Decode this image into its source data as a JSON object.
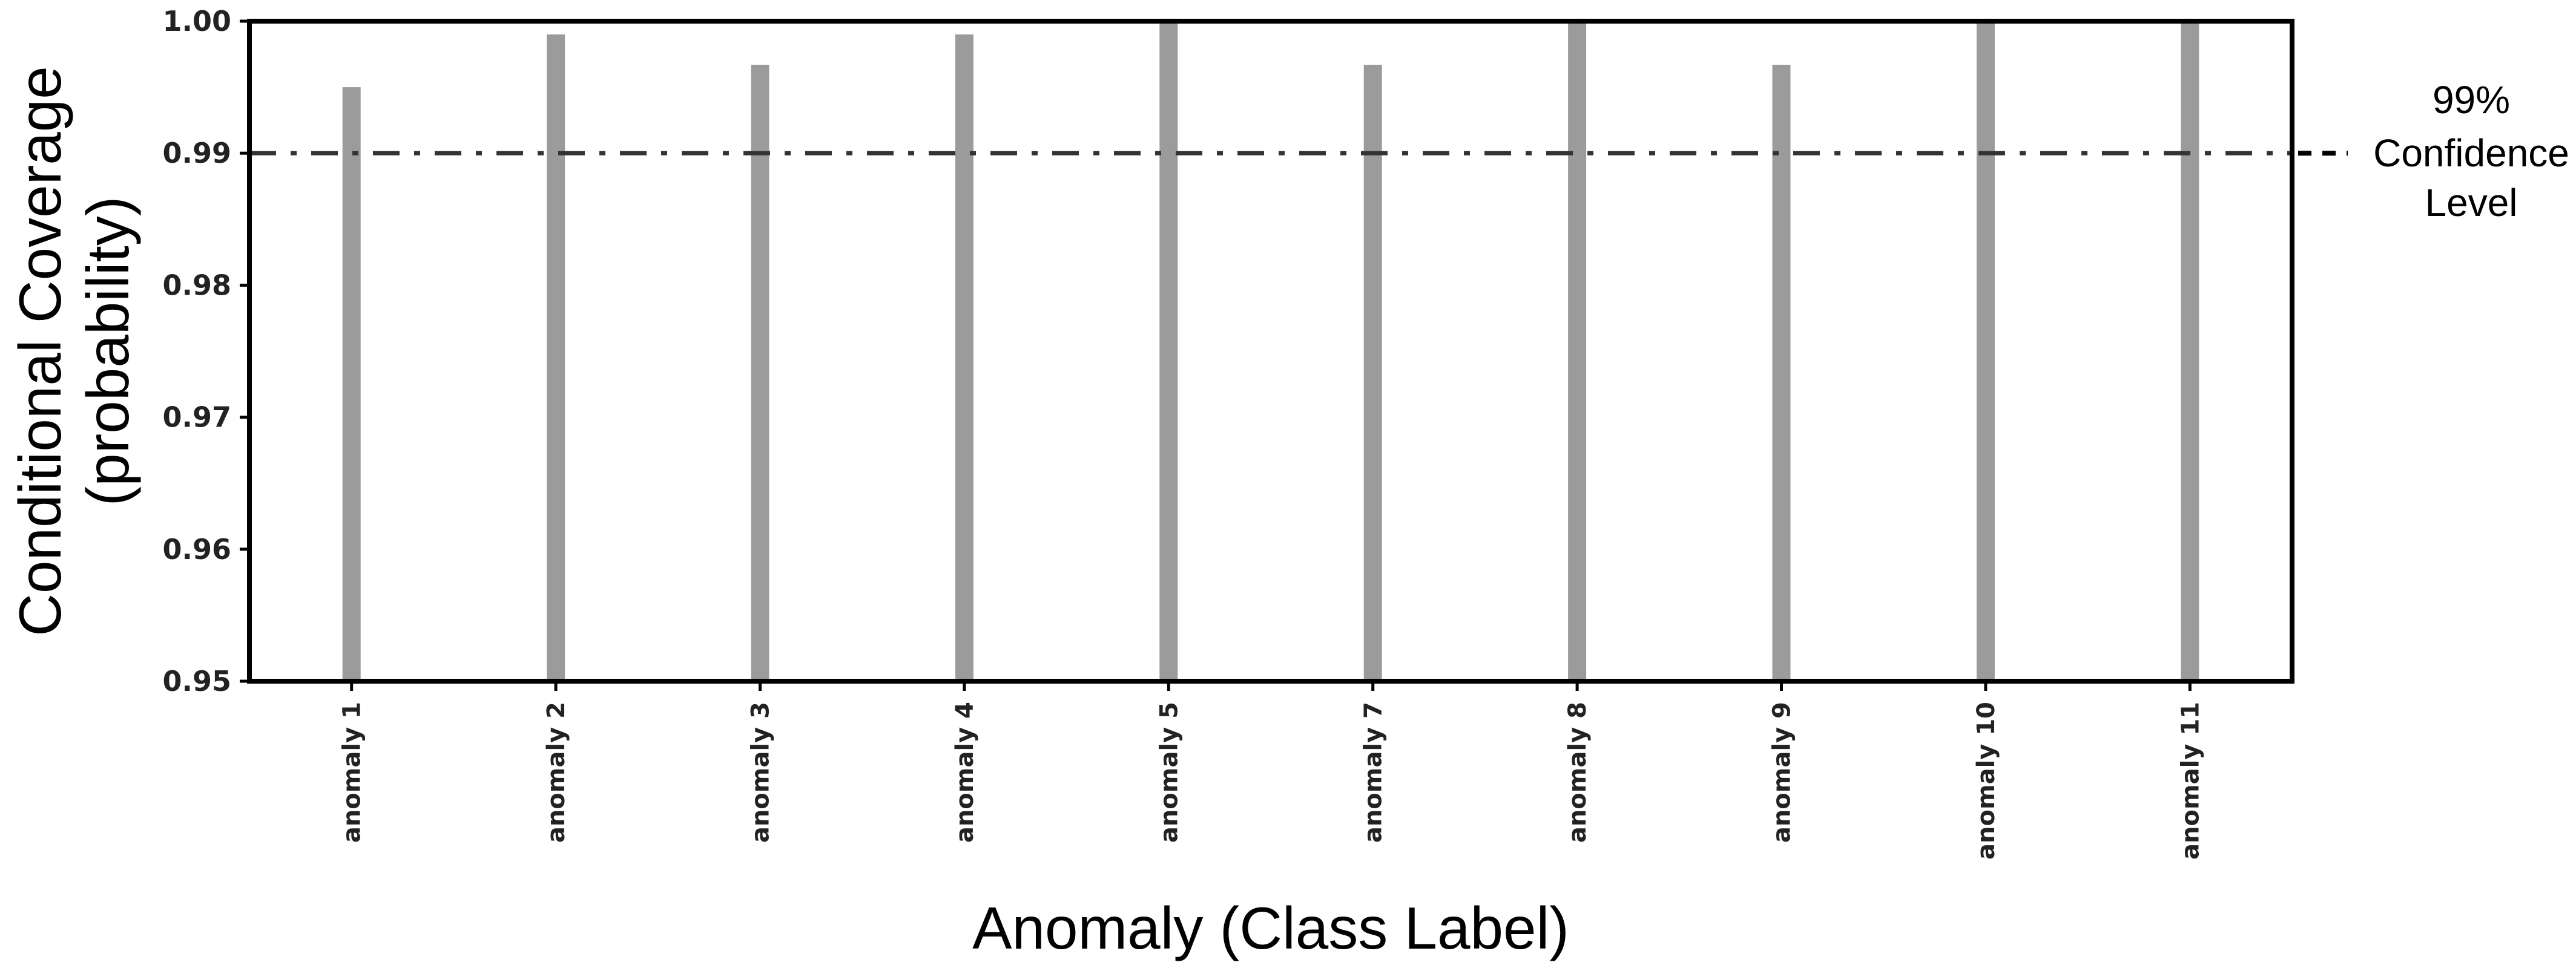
{
  "chart_data": {
    "type": "bar",
    "title": "",
    "xlabel": "Anomaly (Class Label)",
    "ylabel_lines": [
      "Conditional Coverage",
      "(probability)"
    ],
    "categories": [
      "anomaly 1",
      "anomaly 2",
      "anomaly 3",
      "anomaly 4",
      "anomaly 5",
      "anomaly 7",
      "anomaly 8",
      "anomaly 9",
      "anomaly 10",
      "anomaly 11"
    ],
    "values": [
      0.995,
      0.999,
      0.9967,
      0.999,
      1.0,
      0.9967,
      1.0,
      0.9967,
      1.0,
      1.0
    ],
    "ylim": [
      0.95,
      1.0
    ],
    "yticks": [
      "0.95",
      "0.96",
      "0.97",
      "0.98",
      "0.99",
      "1.00"
    ],
    "reference_line": {
      "value": 0.99,
      "style": "dash-dot"
    },
    "legend": {
      "placement": "right",
      "lines": [
        "99%",
        "Confidence",
        "Level"
      ]
    },
    "grid": false,
    "bar_color": "#9b9b9b"
  }
}
